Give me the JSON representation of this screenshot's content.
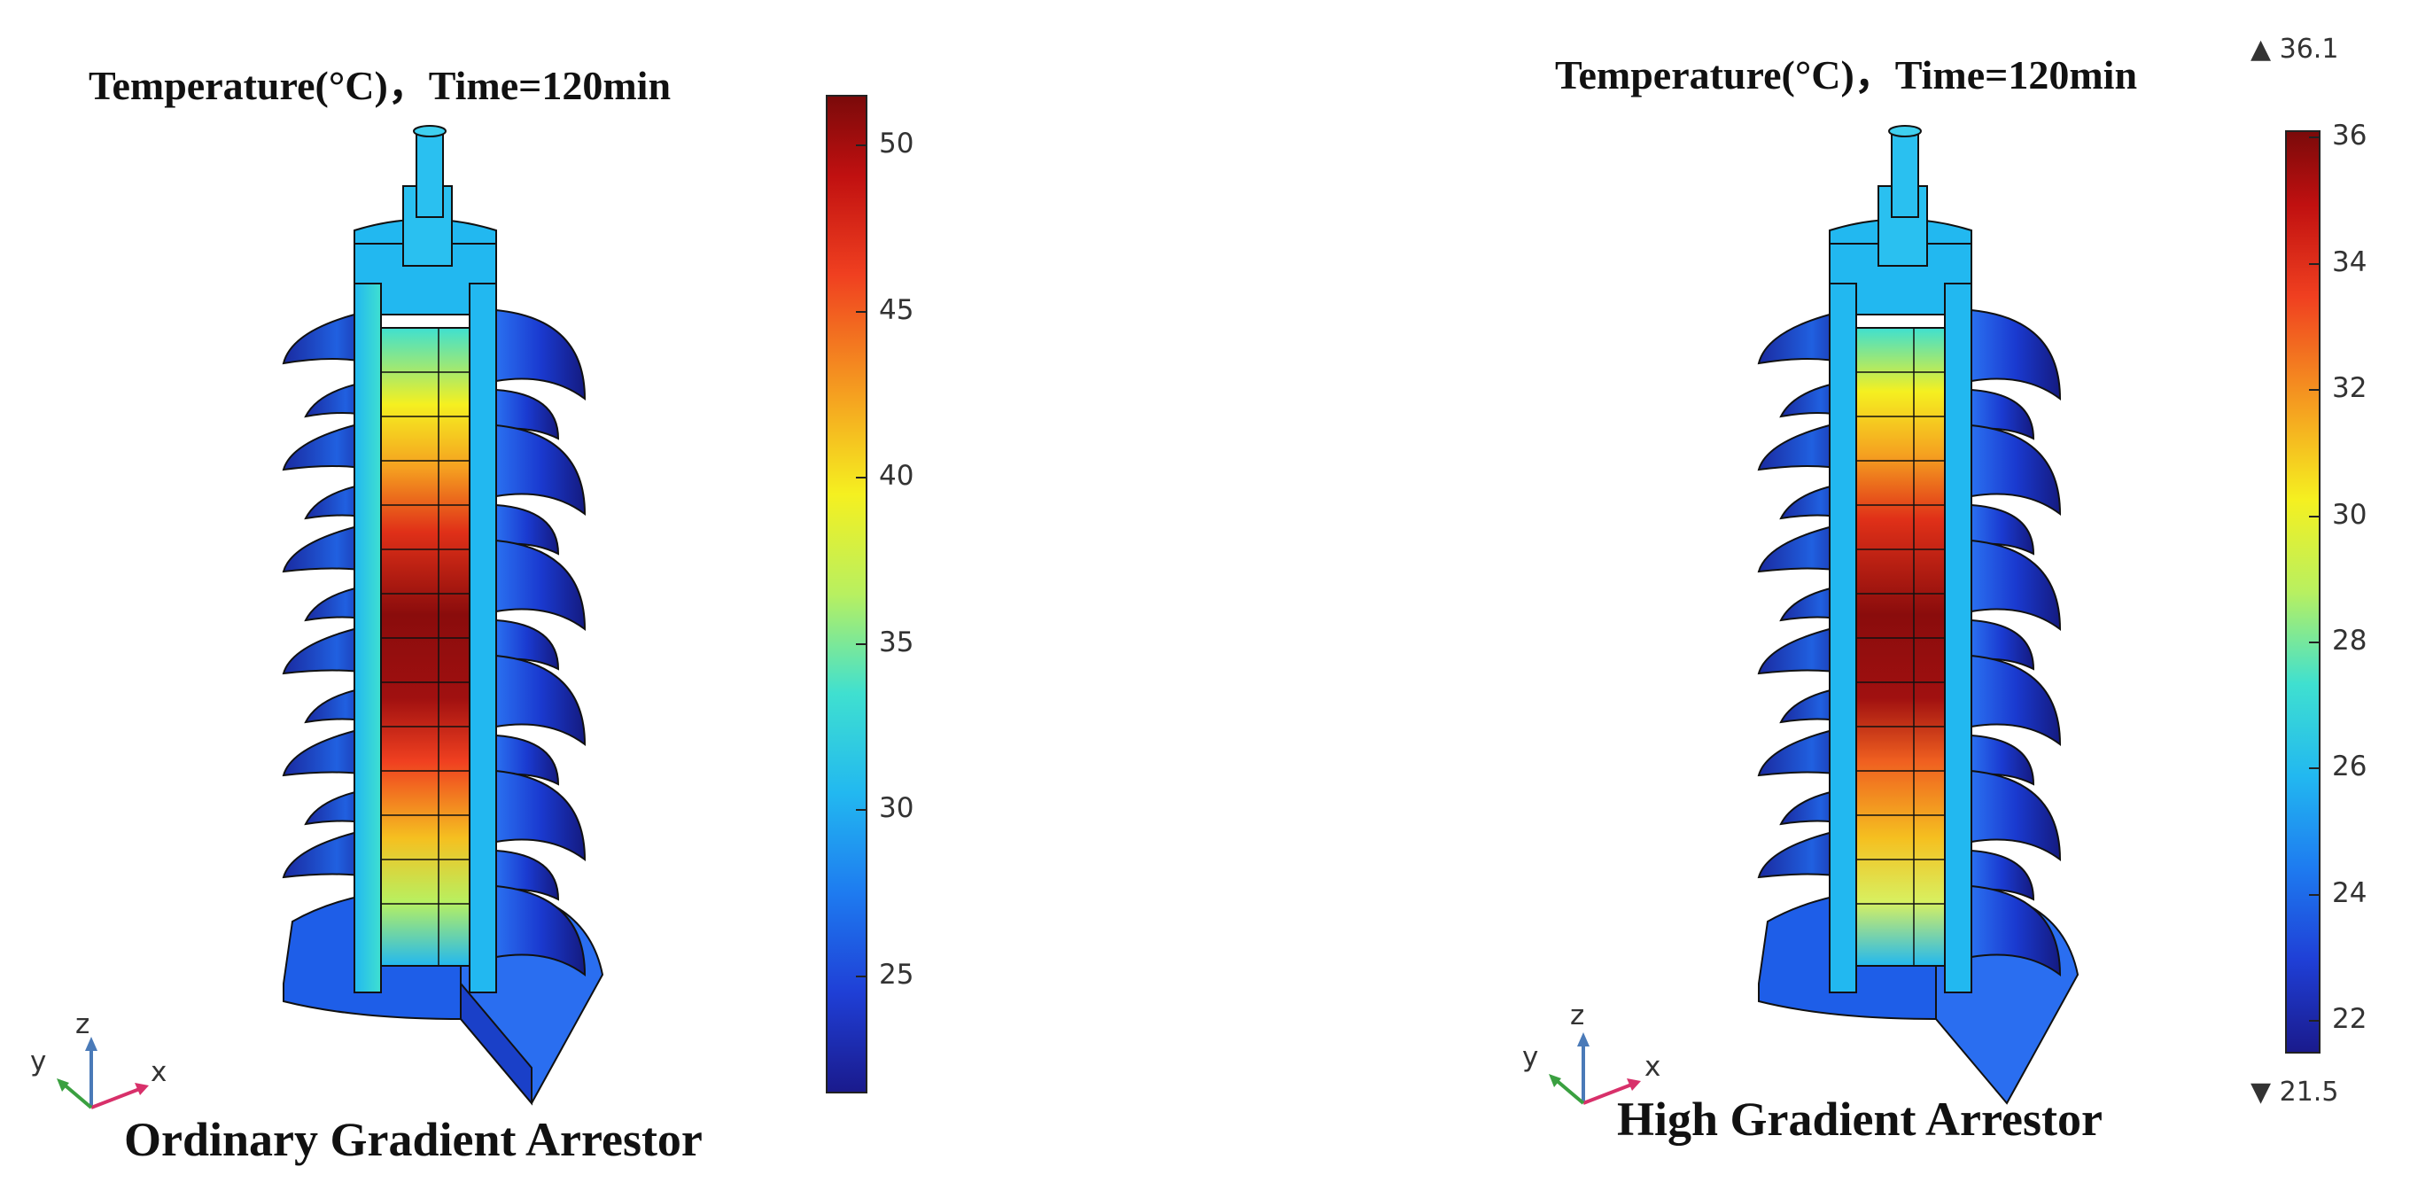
{
  "left_panel": {
    "title": "Temperature(°C)，Time=120min",
    "caption": "Ordinary Gradient Arrestor",
    "colorbar": {
      "min": 21.5,
      "max": 51.5,
      "ticks": [
        "50",
        "45",
        "40",
        "35",
        "30",
        "25"
      ],
      "tick_values": [
        50,
        45,
        40,
        35,
        30,
        25
      ]
    },
    "axes_labels": {
      "x": "x",
      "y": "y",
      "z": "z"
    }
  },
  "right_panel": {
    "title": "Temperature(°C)，Time=120min",
    "caption": "High Gradient Arrestor",
    "max_label": "▲ 36.1",
    "min_label": "▼ 21.5",
    "colorbar": {
      "min": 21.5,
      "max": 36.1,
      "ticks": [
        "36",
        "34",
        "32",
        "30",
        "28",
        "26",
        "24",
        "22"
      ],
      "tick_values": [
        36,
        34,
        32,
        30,
        28,
        26,
        24,
        22
      ]
    },
    "axes_labels": {
      "x": "x",
      "y": "y",
      "z": "z"
    }
  },
  "colormap": [
    "#1a1a8c",
    "#1f3fd6",
    "#1e7bf0",
    "#22b8f0",
    "#3fe0d0",
    "#b8f060",
    "#f5f020",
    "#f5a020",
    "#f04020",
    "#c01010",
    "#7a0a0a"
  ]
}
